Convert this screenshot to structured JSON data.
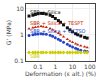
{
  "chart_data": {
    "type": "scatter",
    "xlabel": "Deformation (ε alt.) (%)",
    "ylabel": "G’ (MPa)",
    "x": [
      0.03,
      0.05,
      0.07,
      0.1,
      0.15,
      0.2,
      0.3,
      0.5,
      0.7,
      1.0,
      1.5,
      2.0,
      3.0,
      5.0,
      7.0,
      10.0,
      15.0,
      20.0,
      30.0,
      50.0,
      70.0
    ],
    "series": [
      {
        "name": "SBR + Silica",
        "color": "#111111",
        "marker": "square",
        "values": [
          5.2,
          5.6,
          6.0,
          6.4,
          6.6,
          6.5,
          6.2,
          5.6,
          5.0,
          4.2,
          3.5,
          3.0,
          2.4,
          1.85,
          1.55,
          1.3,
          1.1,
          1.0,
          0.9,
          0.8,
          0.75
        ]
      },
      {
        "name": "SBR + Silica + TESPT",
        "color": "#cc2200",
        "marker": "triangle-up",
        "values": [
          1.7,
          1.85,
          1.95,
          2.05,
          2.1,
          2.05,
          1.95,
          1.75,
          1.55,
          1.35,
          1.15,
          1.0,
          0.84,
          0.68,
          0.58,
          0.52,
          0.46,
          0.42,
          0.38,
          0.35,
          0.33
        ]
      },
      {
        "name": "SBR + Silica + OCTSO",
        "color": "#2244cc",
        "marker": "circle",
        "values": [
          0.95,
          1.0,
          1.05,
          1.08,
          1.1,
          1.08,
          1.05,
          0.97,
          0.88,
          0.78,
          0.68,
          0.6,
          0.52,
          0.44,
          0.38,
          0.34,
          0.31,
          0.28,
          0.26,
          0.24,
          0.23
        ]
      },
      {
        "name": "SBR",
        "color": "#cccc00",
        "marker": "diamond",
        "values": [
          0.21,
          0.21,
          0.21,
          0.21,
          0.21,
          0.21,
          0.21,
          0.21,
          0.21,
          0.21,
          0.21,
          0.21,
          0.21,
          0.21,
          0.21,
          0.21,
          0.21,
          0.21,
          0.21,
          0.21,
          0.21
        ]
      }
    ],
    "annotations": [
      {
        "text": "SBR + Silica",
        "x": 0.025,
        "y": 7.5,
        "color": "#111111"
      },
      {
        "text": "SBR + Silica + TESPT",
        "x": 0.025,
        "y": 2.8,
        "color": "#cc2200"
      },
      {
        "text": "SBR + Silica + OCTSO",
        "x": 0.025,
        "y": 1.45,
        "color": "#2244cc"
      },
      {
        "text": "SBR",
        "x": 0.025,
        "y": 0.155,
        "color": "#cccc00"
      }
    ],
    "xlim": [
      0.02,
      200
    ],
    "ylim": [
      0.1,
      15
    ],
    "xticks": [
      0.1,
      1,
      10,
      100
    ],
    "yticks": [
      0.1,
      1,
      10
    ],
    "log": true,
    "grid": true
  }
}
